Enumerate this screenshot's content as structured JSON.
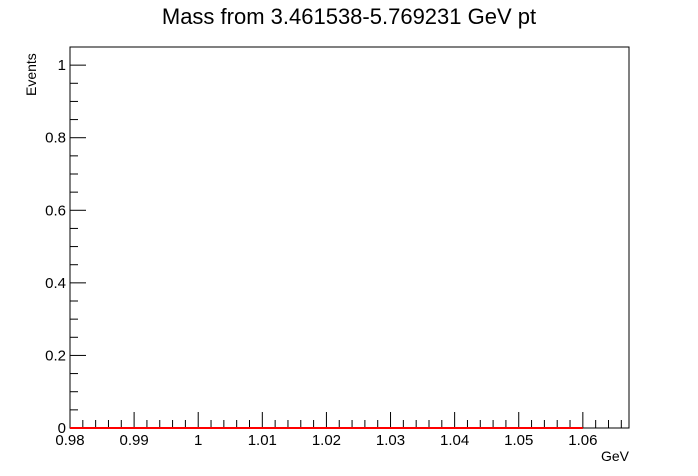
{
  "chart_data": {
    "type": "line",
    "title": "Mass from 3.461538-5.769231 GeV pt",
    "xlabel": "GeV",
    "ylabel": "Events",
    "xlim": [
      0.98,
      1.0672
    ],
    "ylim": [
      0,
      1.05
    ],
    "x_ticks": [
      0.98,
      0.99,
      1.0,
      1.01,
      1.02,
      1.03,
      1.04,
      1.05,
      1.06
    ],
    "x_tick_labels": [
      "0.98",
      "0.99",
      "1",
      "1.01",
      "1.02",
      "1.03",
      "1.04",
      "1.05",
      "1.06"
    ],
    "y_ticks": [
      0,
      0.2,
      0.4,
      0.6,
      0.8,
      1.0
    ],
    "y_tick_labels": [
      "0",
      "0.2",
      "0.4",
      "0.6",
      "0.8",
      "1"
    ],
    "grid": false,
    "series": [
      {
        "color": "#ff0000",
        "x": [
          0.98,
          1.06
        ],
        "y": [
          0,
          0
        ]
      }
    ]
  }
}
